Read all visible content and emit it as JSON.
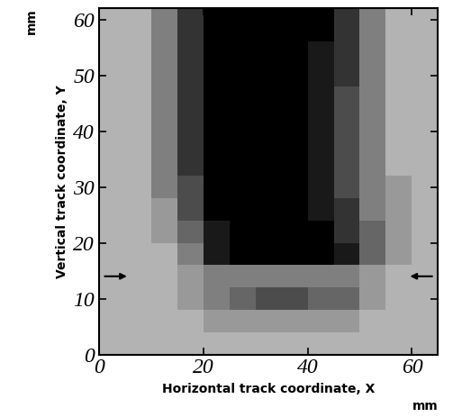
{
  "chart_data": {
    "type": "heatmap",
    "x_label": "Horizontal track coordinate, X",
    "y_label": "Vertical track coordinate, Y",
    "annotations": [
      "mm",
      "mm"
    ],
    "xlim": [
      0,
      65
    ],
    "ylim": [
      0,
      62
    ],
    "xticks": [
      0,
      20,
      40,
      60
    ],
    "yticks": [
      0,
      10,
      20,
      30,
      40,
      50,
      60
    ],
    "arrow_y": 14,
    "x_edges": [
      0,
      5,
      10,
      15,
      20,
      25,
      30,
      35,
      40,
      45,
      50,
      55,
      60,
      65
    ],
    "y_edges": [
      0,
      4,
      8,
      12,
      16,
      20,
      24,
      28,
      32,
      36,
      40,
      44,
      48,
      52,
      56,
      60,
      64
    ],
    "color_range": [
      0,
      10
    ],
    "cells": [
      [
        3,
        3,
        3,
        3,
        3,
        3,
        3,
        3,
        3,
        3,
        3,
        3,
        3
      ],
      [
        3,
        3,
        3,
        3,
        4,
        4,
        4,
        4,
        4,
        4,
        3,
        3,
        3
      ],
      [
        3,
        3,
        3,
        4,
        5,
        6,
        7,
        7,
        6,
        6,
        4,
        3,
        3
      ],
      [
        3,
        3,
        3,
        4,
        5,
        5,
        5,
        5,
        5,
        5,
        4,
        3,
        3
      ],
      [
        3,
        3,
        3,
        5,
        9,
        10,
        10,
        10,
        10,
        9,
        6,
        4,
        3
      ],
      [
        3,
        3,
        4,
        6,
        9,
        10,
        10,
        10,
        10,
        8,
        6,
        4,
        3
      ],
      [
        3,
        3,
        4,
        7,
        10,
        10,
        10,
        10,
        9,
        8,
        5,
        4,
        3
      ],
      [
        3,
        3,
        5,
        7,
        10,
        10,
        10,
        10,
        9,
        7,
        5,
        4,
        3
      ],
      [
        3,
        3,
        5,
        8,
        10,
        10,
        10,
        10,
        9,
        7,
        5,
        3,
        3
      ],
      [
        3,
        3,
        5,
        8,
        10,
        10,
        10,
        10,
        9,
        7,
        5,
        3,
        3
      ],
      [
        3,
        3,
        5,
        8,
        10,
        10,
        10,
        10,
        9,
        7,
        5,
        3,
        3
      ],
      [
        3,
        3,
        5,
        8,
        10,
        10,
        10,
        10,
        9,
        7,
        5,
        3,
        3
      ],
      [
        3,
        3,
        5,
        8,
        10,
        10,
        10,
        10,
        9,
        8,
        5,
        3,
        3
      ],
      [
        3,
        3,
        5,
        8,
        10,
        10,
        10,
        10,
        9,
        8,
        5,
        3,
        3
      ],
      [
        3,
        3,
        5,
        8,
        10,
        10,
        10,
        10,
        10,
        8,
        5,
        3,
        3
      ],
      [
        3,
        3,
        5,
        8,
        10,
        10,
        10,
        10,
        10,
        8,
        5,
        3,
        3
      ]
    ]
  }
}
